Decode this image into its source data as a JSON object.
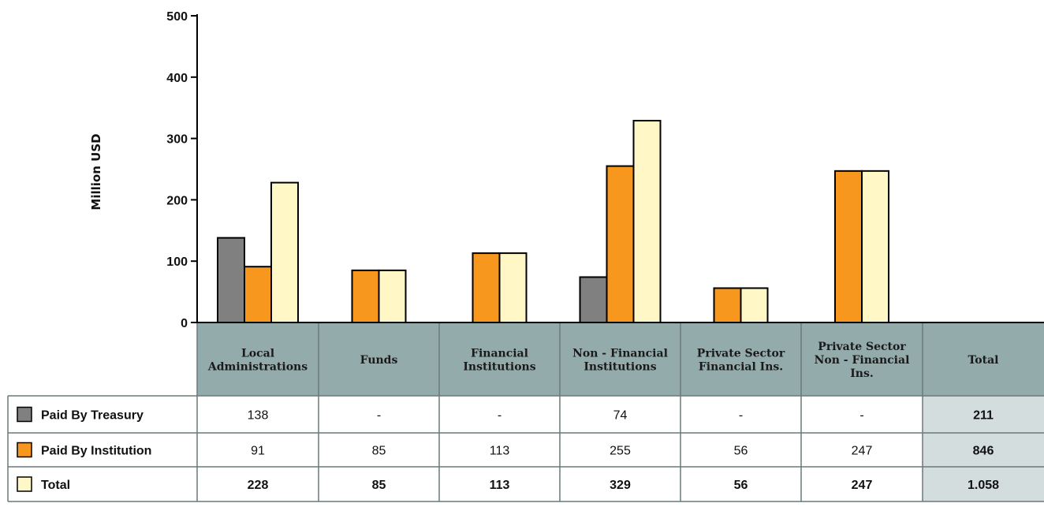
{
  "chart_data": {
    "type": "bar",
    "ylabel": "Million  USD",
    "ylim": [
      0,
      500
    ],
    "yticks": [
      "0",
      "100",
      "200",
      "300",
      "400",
      "500"
    ],
    "ytick_values": [
      0,
      100,
      200,
      300,
      400,
      500
    ],
    "grid": false,
    "categories": [
      [
        "Local",
        "Administrations"
      ],
      [
        "Funds"
      ],
      [
        "Financial",
        "Institutions"
      ],
      [
        "Non - Financial",
        "Institutions"
      ],
      [
        "Private Sector",
        "Financial Ins."
      ],
      [
        "Private Sector",
        "Non - Financial",
        "Ins."
      ]
    ],
    "total_column_label": "Total",
    "series": [
      {
        "name": "Paid By Treasury",
        "color": "#808080",
        "values": [
          138,
          null,
          null,
          74,
          null,
          null
        ],
        "display": [
          "138",
          "-",
          "-",
          "74",
          "-",
          "-"
        ],
        "total": "211",
        "bold": false
      },
      {
        "name": "Paid By Institution",
        "color": "#f7971e",
        "values": [
          91,
          85,
          113,
          255,
          56,
          247
        ],
        "display": [
          "91",
          "85",
          "113",
          "255",
          "56",
          "247"
        ],
        "total": "846",
        "bold": false
      },
      {
        "name": "Total",
        "color": "#fff8c6",
        "values": [
          228,
          85,
          113,
          329,
          56,
          247
        ],
        "display": [
          "228",
          "85",
          "113",
          "329",
          "56",
          "247"
        ],
        "total": "1.058",
        "bold": true
      }
    ],
    "colors": {
      "header_bg": "#94abab",
      "total_col_bg": "#d3dddd",
      "grid_line": "#6a7a7a"
    }
  }
}
